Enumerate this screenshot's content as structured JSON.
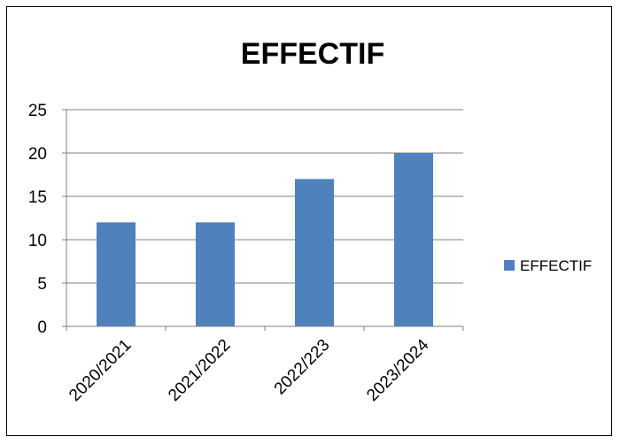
{
  "chart_data": {
    "type": "bar",
    "title": "EFFECTIF",
    "xlabel": "",
    "ylabel": "",
    "categories": [
      "2020/2021",
      "2021/2022",
      "2022/223",
      "2023/2024"
    ],
    "series": [
      {
        "name": "EFFECTIF",
        "values": [
          12,
          12,
          17,
          20
        ],
        "color": "#4F81BD"
      }
    ],
    "ylim": [
      0,
      25
    ],
    "yticks": [
      "0",
      "5",
      "10",
      "15",
      "20",
      "25"
    ],
    "grid": true,
    "legend_position": "right",
    "gridline_color": "#808080",
    "axis_color": "#808080"
  }
}
